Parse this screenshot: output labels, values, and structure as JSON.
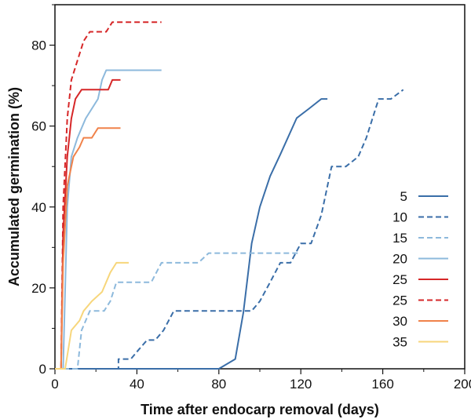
{
  "chart_data": {
    "type": "line",
    "title": "",
    "xlabel": "Time after endocarp removal (days)",
    "ylabel": "Accumulated germination (%)",
    "xlim": [
      0,
      200
    ],
    "ylim": [
      0,
      90
    ],
    "xticks": [
      0,
      40,
      80,
      120,
      160,
      200
    ],
    "yticks": [
      0,
      20,
      40,
      60,
      80
    ],
    "grid": false,
    "legend_position": "right",
    "series": [
      {
        "name": "5",
        "color": "#3A6EA8",
        "dash": "solid",
        "points": [
          [
            0,
            0
          ],
          [
            80,
            0
          ],
          [
            88,
            2.4
          ],
          [
            92,
            14
          ],
          [
            96,
            31
          ],
          [
            100,
            40
          ],
          [
            105,
            47.6
          ],
          [
            110,
            53
          ],
          [
            118,
            62
          ],
          [
            124,
            64.3
          ],
          [
            130,
            66.7
          ],
          [
            133,
            66.7
          ]
        ]
      },
      {
        "name": "10",
        "color": "#3A6EA8",
        "dash": "dashed",
        "points": [
          [
            0,
            0
          ],
          [
            31,
            0
          ],
          [
            31,
            2.4
          ],
          [
            37,
            2.4
          ],
          [
            41,
            4.8
          ],
          [
            45,
            7.1
          ],
          [
            49,
            7.1
          ],
          [
            53,
            9.5
          ],
          [
            58,
            14.3
          ],
          [
            96,
            14.3
          ],
          [
            100,
            16.7
          ],
          [
            105,
            21.4
          ],
          [
            110,
            26.2
          ],
          [
            115,
            26.2
          ],
          [
            120,
            31
          ],
          [
            125,
            31
          ],
          [
            130,
            38
          ],
          [
            135,
            50
          ],
          [
            142,
            50
          ],
          [
            148,
            52.4
          ],
          [
            152,
            57.1
          ],
          [
            158,
            66.7
          ],
          [
            164,
            66.7
          ],
          [
            170,
            69
          ]
        ]
      },
      {
        "name": "15",
        "color": "#8DB9DC",
        "dash": "dashed",
        "points": [
          [
            0,
            0
          ],
          [
            11,
            0
          ],
          [
            13,
            9.5
          ],
          [
            15,
            11.9
          ],
          [
            17,
            14.3
          ],
          [
            24,
            14.3
          ],
          [
            27,
            16.7
          ],
          [
            30,
            21.4
          ],
          [
            47,
            21.4
          ],
          [
            52,
            26.2
          ],
          [
            70,
            26.2
          ],
          [
            75,
            28.6
          ],
          [
            120,
            28.6
          ]
        ]
      },
      {
        "name": "20",
        "color": "#8DB9DC",
        "dash": "solid",
        "points": [
          [
            0,
            0
          ],
          [
            4,
            0
          ],
          [
            6,
            40
          ],
          [
            8,
            52.4
          ],
          [
            11,
            57.1
          ],
          [
            13,
            59.5
          ],
          [
            15,
            61.9
          ],
          [
            18,
            64.3
          ],
          [
            21,
            66.7
          ],
          [
            23,
            71.4
          ],
          [
            25,
            73.8
          ],
          [
            52,
            73.8
          ]
        ]
      },
      {
        "name": "25",
        "color": "#D62728",
        "dash": "solid",
        "points": [
          [
            0,
            0
          ],
          [
            3,
            0
          ],
          [
            4,
            33.3
          ],
          [
            6,
            52.4
          ],
          [
            8,
            61.9
          ],
          [
            10,
            66.7
          ],
          [
            13,
            69
          ],
          [
            26,
            69
          ],
          [
            28,
            71.4
          ],
          [
            32,
            71.4
          ]
        ]
      },
      {
        "name": "25",
        "color": "#D62728",
        "dash": "dashed",
        "points": [
          [
            0,
            0
          ],
          [
            3,
            0
          ],
          [
            4,
            40
          ],
          [
            6,
            61.9
          ],
          [
            8,
            71.4
          ],
          [
            11,
            76.2
          ],
          [
            14,
            81
          ],
          [
            17,
            83.3
          ],
          [
            25,
            83.3
          ],
          [
            28,
            85.7
          ],
          [
            52,
            85.7
          ]
        ]
      },
      {
        "name": "30",
        "color": "#F0824A",
        "dash": "solid",
        "points": [
          [
            0,
            0
          ],
          [
            3,
            0
          ],
          [
            4,
            26.2
          ],
          [
            6,
            45.2
          ],
          [
            9,
            52.4
          ],
          [
            12,
            54.8
          ],
          [
            14,
            57.1
          ],
          [
            18,
            57.1
          ],
          [
            21,
            59.5
          ],
          [
            32,
            59.5
          ]
        ]
      },
      {
        "name": "35",
        "color": "#F7D67B",
        "dash": "solid",
        "points": [
          [
            0,
            0
          ],
          [
            5,
            0
          ],
          [
            8,
            9.5
          ],
          [
            12,
            11.9
          ],
          [
            14,
            14.3
          ],
          [
            18,
            16.7
          ],
          [
            23,
            19
          ],
          [
            27,
            23.8
          ],
          [
            30,
            26.2
          ],
          [
            36,
            26.2
          ]
        ]
      }
    ]
  }
}
